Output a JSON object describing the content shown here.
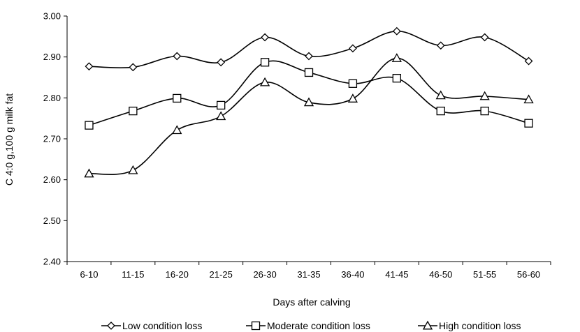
{
  "chart_data": {
    "type": "line",
    "title": "",
    "xlabel": "Days after calving",
    "ylabel": "C 4:0 g,100 g milk fat",
    "ylim": [
      2.4,
      3.0
    ],
    "yticks": [
      "2.40",
      "2.50",
      "2.60",
      "2.70",
      "2.80",
      "2.90",
      "3.00"
    ],
    "categories": [
      "6-10",
      "11-15",
      "16-20",
      "21-25",
      "26-30",
      "31-35",
      "36-40",
      "41-45",
      "46-50",
      "51-55",
      "56-60"
    ],
    "grid": false,
    "legend_position": "bottom",
    "series": [
      {
        "name": "Low condition loss",
        "marker": "diamond",
        "values": [
          2.877,
          2.875,
          2.902,
          2.887,
          2.948,
          2.902,
          2.921,
          2.963,
          2.928,
          2.948,
          2.89
        ]
      },
      {
        "name": "Moderate condition loss",
        "marker": "square",
        "values": [
          2.733,
          2.768,
          2.799,
          2.782,
          2.887,
          2.862,
          2.835,
          2.848,
          2.768,
          2.768,
          2.738
        ]
      },
      {
        "name": "High condition loss",
        "marker": "triangle",
        "values": [
          2.615,
          2.623,
          2.721,
          2.755,
          2.838,
          2.789,
          2.798,
          2.897,
          2.806,
          2.804,
          2.796
        ]
      }
    ]
  }
}
